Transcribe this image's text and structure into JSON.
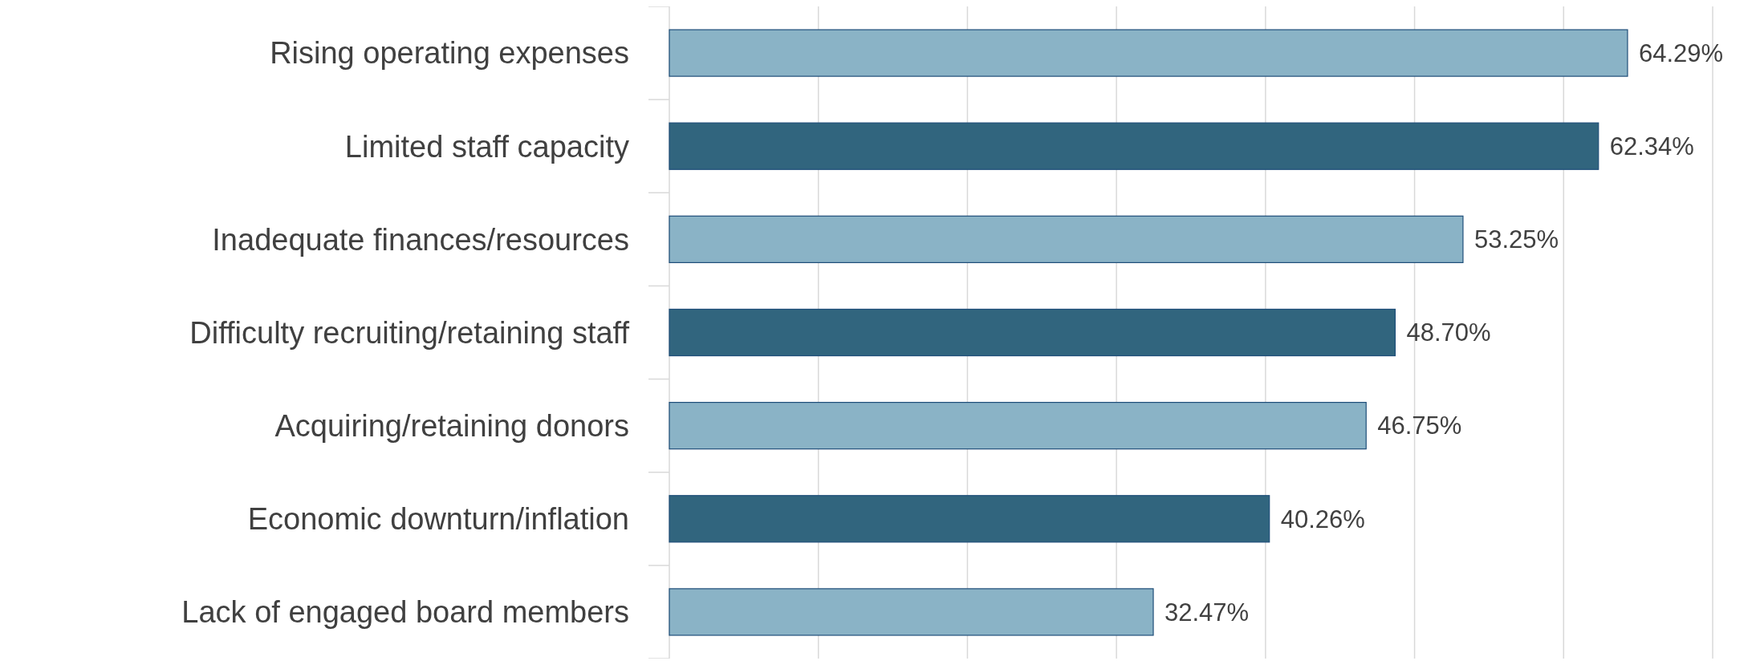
{
  "chart_data": {
    "type": "bar",
    "orientation": "horizontal",
    "categories": [
      "Rising operating expenses",
      "Limited staff capacity",
      "Inadequate finances/resources",
      "Difficulty recruiting/retaining staff",
      "Acquiring/retaining donors",
      "Economic downturn/inflation",
      "Lack of engaged board members"
    ],
    "values": [
      64.29,
      62.34,
      53.25,
      48.7,
      46.75,
      40.26,
      32.47
    ],
    "value_labels": [
      "64.29%",
      "62.34%",
      "53.25%",
      "48.70%",
      "46.75%",
      "40.26%",
      "32.47%"
    ],
    "colors": [
      "#8ab3c6",
      "#31657e",
      "#8ab3c6",
      "#31657e",
      "#8ab3c6",
      "#31657e",
      "#8ab3c6"
    ],
    "xlim": [
      0,
      70
    ],
    "xticks": [
      {
        "value": 0,
        "label": null
      },
      {
        "value": 10,
        "label": null
      },
      {
        "value": 20,
        "label": null
      },
      {
        "value": 30,
        "label": null
      },
      {
        "value": 40,
        "label": null
      },
      {
        "value": 50,
        "label": null
      },
      {
        "value": 60,
        "label": null
      },
      {
        "value": 70,
        "label": null
      }
    ],
    "grid": "x",
    "tick_labels": "y"
  }
}
